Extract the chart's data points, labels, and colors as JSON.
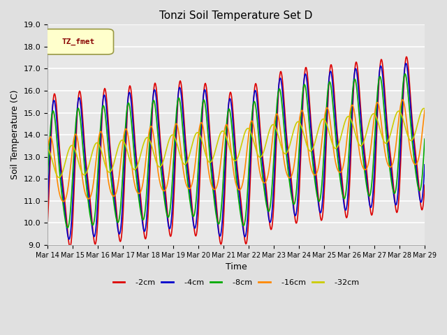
{
  "title": "Tonzi Soil Temperature Set D",
  "xlabel": "Time",
  "ylabel": "Soil Temperature (C)",
  "ylim": [
    9.0,
    19.0
  ],
  "yticks": [
    9.0,
    10.0,
    11.0,
    12.0,
    13.0,
    14.0,
    15.0,
    16.0,
    17.0,
    18.0,
    19.0
  ],
  "xtick_labels": [
    "Mar 14",
    "Mar 15",
    "Mar 16",
    "Mar 17",
    "Mar 18",
    "Mar 19",
    "Mar 20",
    "Mar 21",
    "Mar 22",
    "Mar 23",
    "Mar 24",
    "Mar 25",
    "Mar 26",
    "Mar 27",
    "Mar 28",
    "Mar 29"
  ],
  "legend_label": "TZ_fmet",
  "series": {
    "-2cm": {
      "color": "#dd0000",
      "lw": 1.2
    },
    "-4cm": {
      "color": "#0000cc",
      "lw": 1.2
    },
    "-8cm": {
      "color": "#00aa00",
      "lw": 1.2
    },
    "-16cm": {
      "color": "#ff8800",
      "lw": 1.2
    },
    "-32cm": {
      "color": "#cccc00",
      "lw": 1.2
    }
  },
  "bg_color": "#e8e8e8",
  "fig_bg": "#e0e0e0"
}
